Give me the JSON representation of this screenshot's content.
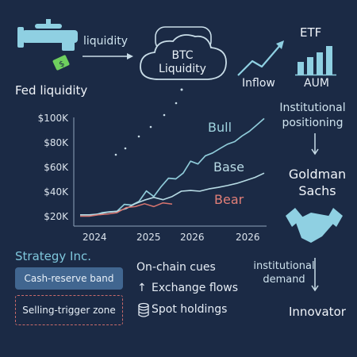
{
  "source": {
    "label": "Fed liquidity",
    "icon": "faucet-icon"
  },
  "flow_label": "liquidity",
  "hub": {
    "label": "BTC Liquidity",
    "icon": "cloud-icon"
  },
  "etf": {
    "title": "ETF",
    "inflow_label": "Inflow",
    "aum_label": "AUM"
  },
  "institutional_positioning": "Institutional positioning",
  "goldman": "Goldman Sachs",
  "institutional_demand": "institutional demand",
  "innovator": "Innovator",
  "strategy": {
    "title": "Strategy Inc.",
    "cash_band": "Cash-reserve band",
    "selling_zone": "Selling-trigger zone"
  },
  "onchain": {
    "title": "On-chain cues",
    "exchange_flows": "Exchange flows",
    "spot_holdings": "Spot holdings"
  },
  "colors": {
    "accent": "#7fc7dc",
    "bull": "#8fcbd9",
    "base": "#b7dbe4",
    "bear": "#d9756f",
    "band": "#416690",
    "danger": "#c96a6a"
  },
  "chart_data": {
    "type": "line",
    "ytick_labels": [
      "$100K",
      "$80K",
      "$60K",
      "$40K",
      "$20K"
    ],
    "ytick_values": [
      100000,
      80000,
      60000,
      40000,
      20000
    ],
    "xtick_labels": [
      "2024",
      "2025",
      "2026",
      "2026"
    ],
    "series": [
      {
        "name": "Bull",
        "x": [
          0,
          4,
          8,
          12,
          16,
          20,
          24,
          28,
          32,
          36,
          40,
          44,
          48,
          52,
          56,
          60,
          64,
          68,
          72,
          76,
          80,
          84,
          88,
          92,
          96,
          100
        ],
        "y": [
          20800,
          20800,
          20800,
          22500,
          23200,
          23600,
          29300,
          28700,
          31700,
          40200,
          35700,
          43700,
          50600,
          50000,
          54700,
          64400,
          62100,
          68800,
          71100,
          74700,
          78200,
          80300,
          85000,
          88700,
          93900,
          99100
        ]
      },
      {
        "name": "Base",
        "x": [
          0,
          5,
          10,
          15,
          20,
          25,
          30,
          35,
          40,
          45,
          50,
          55,
          60,
          65,
          70,
          75,
          80,
          85,
          90,
          95,
          100
        ],
        "y": [
          20800,
          20800,
          21400,
          22900,
          23600,
          25900,
          29900,
          32800,
          35000,
          33100,
          35700,
          40000,
          40600,
          40000,
          41900,
          43100,
          44600,
          46300,
          48700,
          51200,
          54700
        ]
      },
      {
        "name": "Bear",
        "x": [
          0,
          5,
          10,
          15,
          20,
          25,
          30,
          35,
          40,
          45,
          50
        ],
        "y": [
          19700,
          19700,
          20800,
          21400,
          22500,
          26700,
          27500,
          29800,
          27500,
          30500,
          29500
        ]
      }
    ]
  }
}
